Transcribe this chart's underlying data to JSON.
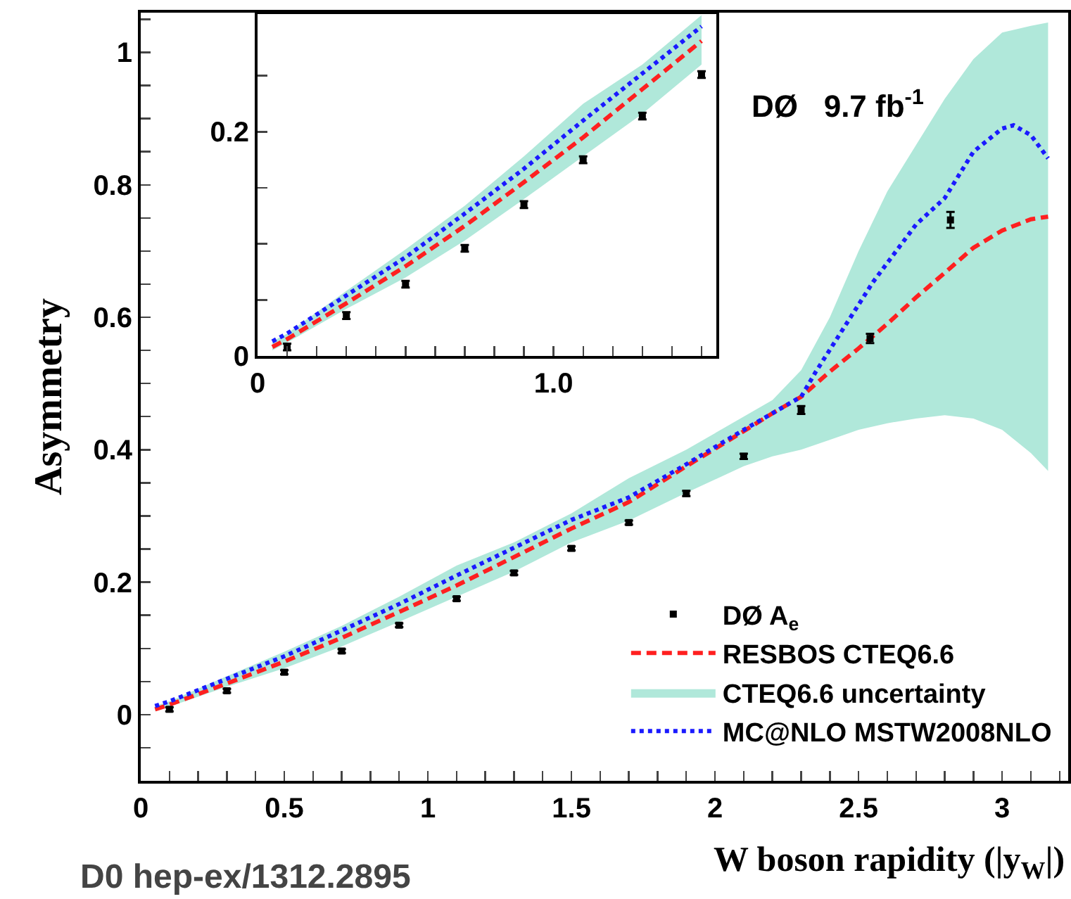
{
  "chart_data": [
    {
      "type": "line",
      "xlabel": "W boson rapidity (|y$_{W}$|)",
      "ylabel": "Asymmetry",
      "xlim": [
        0,
        3.23
      ],
      "ylim": [
        -0.1,
        1.06
      ],
      "xticks": [
        0,
        {
          "value": 0.1,
          "label": null
        },
        {
          "value": 0.2,
          "label": null
        },
        {
          "value": 0.3,
          "label": null
        },
        {
          "value": 0.4,
          "label": null
        },
        0.5,
        {
          "value": 0.6,
          "label": null
        },
        {
          "value": 0.7,
          "label": null
        },
        {
          "value": 0.8,
          "label": null
        },
        {
          "value": 0.9,
          "label": null
        },
        1,
        {
          "value": 1.1,
          "label": null
        },
        {
          "value": 1.2,
          "label": null
        },
        {
          "value": 1.3,
          "label": null
        },
        {
          "value": 1.4,
          "label": null
        },
        1.5,
        {
          "value": 1.6,
          "label": null
        },
        {
          "value": 1.7,
          "label": null
        },
        {
          "value": 1.8,
          "label": null
        },
        {
          "value": 1.9,
          "label": null
        },
        2,
        {
          "value": 2.1,
          "label": null
        },
        {
          "value": 2.2,
          "label": null
        },
        {
          "value": 2.3,
          "label": null
        },
        {
          "value": 2.4,
          "label": null
        },
        2.5,
        {
          "value": 2.6,
          "label": null
        },
        {
          "value": 2.7,
          "label": null
        },
        {
          "value": 2.8,
          "label": null
        },
        {
          "value": 2.9,
          "label": null
        },
        3,
        {
          "value": 3.1,
          "label": null
        },
        {
          "value": 3.2,
          "label": null
        }
      ],
      "yticks": [
        {
          "value": -0.05,
          "label": null
        },
        0,
        {
          "value": 0.05,
          "label": null
        },
        {
          "value": 0.1,
          "label": null
        },
        {
          "value": 0.15,
          "label": null
        },
        0.2,
        {
          "value": 0.25,
          "label": null
        },
        {
          "value": 0.3,
          "label": null
        },
        {
          "value": 0.35,
          "label": null
        },
        0.4,
        {
          "value": 0.45,
          "label": null
        },
        {
          "value": 0.5,
          "label": null
        },
        {
          "value": 0.55,
          "label": null
        },
        0.6,
        {
          "value": 0.65,
          "label": null
        },
        {
          "value": 0.7,
          "label": null
        },
        {
          "value": 0.75,
          "label": null
        },
        0.8,
        {
          "value": 0.85,
          "label": null
        },
        {
          "value": 0.9,
          "label": null
        },
        {
          "value": 0.95,
          "label": null
        },
        1,
        {
          "value": 1.05,
          "label": null
        }
      ],
      "legend": "bottom right",
      "annotations": [
        "DØ   9.7 fb$^{-1}$",
        "D0 hep-ex/1312.2895",
        "CTEQ6.6 uncertainty"
      ],
      "series": [
        {
          "name": "DØ A$_{e}$",
          "type": "scatter",
          "color": "#000000",
          "marker": "square",
          "x": [
            0.1,
            0.3,
            0.5,
            0.7,
            0.9,
            1.1,
            1.3,
            1.5,
            1.7,
            1.9,
            2.1,
            2.3,
            2.54,
            2.82
          ],
          "values": [
            0.008,
            0.036,
            0.064,
            0.096,
            0.135,
            0.175,
            0.214,
            0.251,
            0.29,
            0.334,
            0.39,
            0.46,
            0.568,
            0.747
          ],
          "errors": [
            0.003,
            0.003,
            0.003,
            0.003,
            0.003,
            0.003,
            0.003,
            0.003,
            0.003,
            0.004,
            0.004,
            0.006,
            0.007,
            0.012
          ]
        },
        {
          "name": "RESBOS CTEQ6.6",
          "type": "line",
          "color": "#ff2020",
          "line_style": "dashed",
          "x": [
            0.05,
            0.1,
            0.3,
            0.5,
            0.7,
            0.9,
            1.1,
            1.3,
            1.5,
            1.7,
            1.9,
            2.1,
            2.2,
            2.3,
            2.4,
            2.5,
            2.6,
            2.7,
            2.8,
            2.9,
            3.0,
            3.1,
            3.16
          ],
          "values": [
            0.008,
            0.015,
            0.047,
            0.08,
            0.116,
            0.155,
            0.195,
            0.238,
            0.281,
            0.321,
            0.375,
            0.428,
            0.455,
            0.48,
            0.518,
            0.553,
            0.59,
            0.63,
            0.667,
            0.705,
            0.731,
            0.748,
            0.752
          ],
          "lower": [
            0.005,
            0.012,
            0.042,
            0.07,
            0.103,
            0.14,
            0.178,
            0.216,
            0.26,
            0.293,
            0.335,
            0.375,
            0.39,
            0.4,
            0.415,
            0.43,
            0.44,
            0.447,
            0.452,
            0.447,
            0.43,
            0.395,
            0.368
          ],
          "upper": [
            0.013,
            0.02,
            0.058,
            0.095,
            0.134,
            0.178,
            0.225,
            0.26,
            0.304,
            0.357,
            0.4,
            0.45,
            0.475,
            0.52,
            0.6,
            0.7,
            0.79,
            0.86,
            0.93,
            0.99,
            1.03,
            1.04,
            1.045
          ]
        },
        {
          "name": "MC@NLO MSTW2008NLO",
          "type": "line",
          "color": "#1a1aff",
          "line_style": "dotted",
          "x": [
            0.05,
            0.1,
            0.3,
            0.5,
            0.7,
            0.9,
            1.1,
            1.3,
            1.5,
            1.7,
            1.9,
            2.1,
            2.3,
            2.35,
            2.45,
            2.55,
            2.7,
            2.8,
            2.9,
            3.0,
            3.04,
            3.1,
            3.16
          ],
          "values": [
            0.013,
            0.02,
            0.054,
            0.088,
            0.127,
            0.167,
            0.21,
            0.252,
            0.294,
            0.328,
            0.378,
            0.43,
            0.48,
            0.517,
            0.585,
            0.653,
            0.74,
            0.78,
            0.85,
            0.885,
            0.89,
            0.875,
            0.84
          ]
        }
      ]
    },
    {
      "type": "line",
      "xlim": [
        0,
        1.55
      ],
      "ylim": [
        0,
        0.305
      ],
      "xticks": [
        0,
        {
          "value": 0.1,
          "label": null
        },
        {
          "value": 0.2,
          "label": null
        },
        {
          "value": 0.3,
          "label": null
        },
        {
          "value": 0.4,
          "label": null
        },
        {
          "value": 0.5,
          "label": null
        },
        {
          "value": 0.6,
          "label": null
        },
        {
          "value": 0.7,
          "label": null
        },
        {
          "value": 0.8,
          "label": null
        },
        {
          "value": 0.9,
          "label": null
        },
        {
          "value": 1,
          "label": "1.0"
        },
        {
          "value": 1.1,
          "label": null
        },
        {
          "value": 1.2,
          "label": null
        },
        {
          "value": 1.3,
          "label": null
        },
        {
          "value": 1.4,
          "label": null
        },
        {
          "value": 1.5,
          "label": null
        }
      ],
      "yticks": [
        0,
        {
          "value": 0.05,
          "label": null
        },
        {
          "value": 0.1,
          "label": null
        },
        {
          "value": 0.15,
          "label": null
        },
        0.2,
        {
          "value": 0.25,
          "label": null
        }
      ],
      "series": [
        {
          "type": "scatter",
          "color": "#000000",
          "x": [
            0.1,
            0.3,
            0.5,
            0.7,
            0.9,
            1.1,
            1.3,
            1.5
          ],
          "values": [
            0.008,
            0.036,
            0.064,
            0.096,
            0.135,
            0.175,
            0.214,
            0.251
          ],
          "errors": [
            0.003,
            0.003,
            0.003,
            0.003,
            0.003,
            0.003,
            0.003,
            0.003
          ]
        },
        {
          "type": "line",
          "color": "#ff2020",
          "line_style": "dashed",
          "x": [
            0.05,
            0.1,
            0.3,
            0.5,
            0.7,
            0.9,
            1.1,
            1.3,
            1.5
          ],
          "values": [
            0.008,
            0.015,
            0.047,
            0.08,
            0.116,
            0.155,
            0.195,
            0.238,
            0.281
          ],
          "lower": [
            0.005,
            0.012,
            0.042,
            0.07,
            0.103,
            0.14,
            0.178,
            0.216,
            0.26
          ],
          "upper": [
            0.013,
            0.02,
            0.058,
            0.095,
            0.134,
            0.178,
            0.225,
            0.26,
            0.304
          ]
        },
        {
          "type": "line",
          "color": "#1a1aff",
          "line_style": "dotted",
          "x": [
            0.05,
            0.1,
            0.3,
            0.5,
            0.7,
            0.9,
            1.1,
            1.3,
            1.5
          ],
          "values": [
            0.013,
            0.02,
            0.054,
            0.088,
            0.127,
            0.167,
            0.21,
            0.252,
            0.294
          ]
        }
      ]
    }
  ]
}
